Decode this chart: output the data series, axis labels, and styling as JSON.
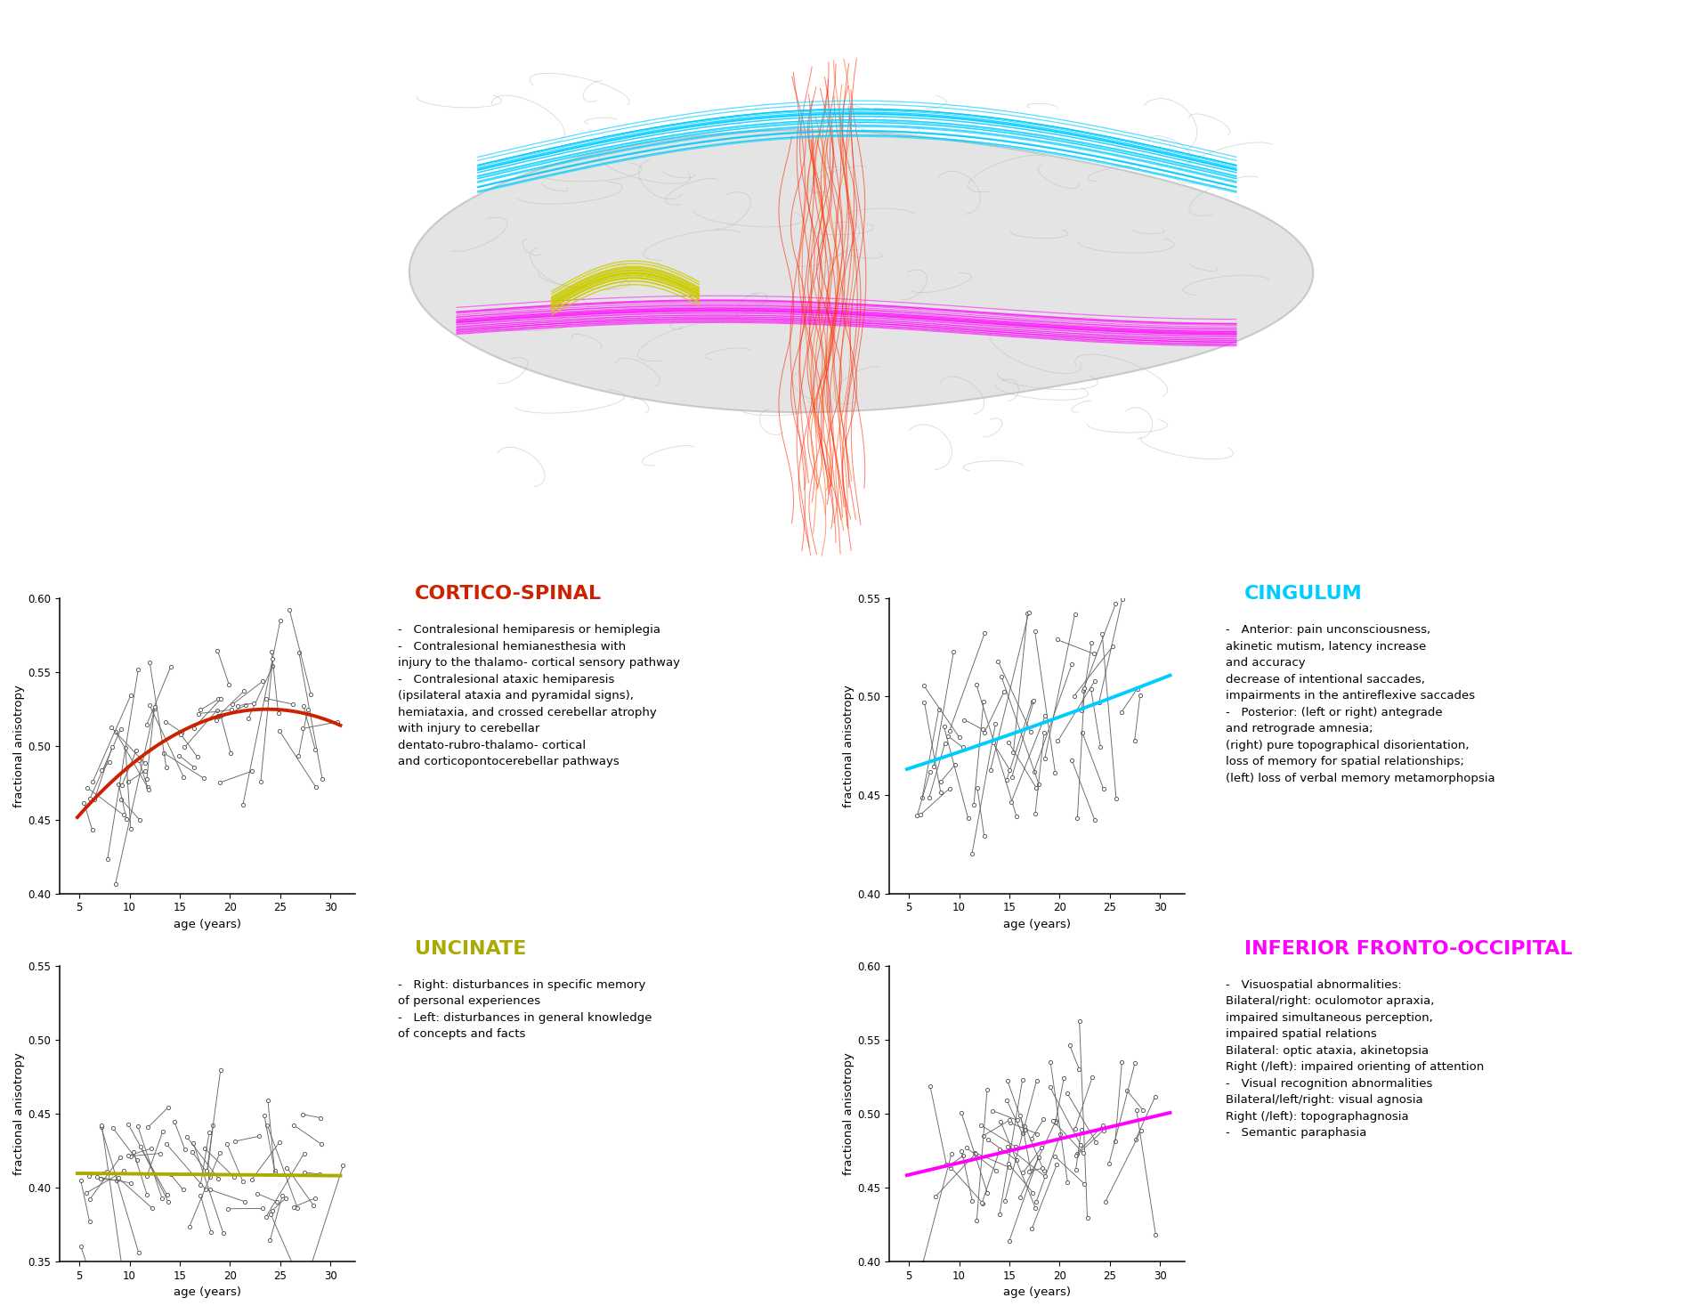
{
  "title_cs": "CORTICO-SPINAL",
  "title_cing": "CINGULUM",
  "title_unc": "UNCINATE",
  "title_ifo": "INFERIOR FRONTO-OCCIPITAL",
  "color_cs": "#CC2200",
  "color_cing": "#00CCFF",
  "color_unc": "#AAAA00",
  "color_ifo": "#FF00FF",
  "ylabel": "fractional anisotropy",
  "xlabel": "age (years)",
  "text_cs": "-   Contralesional hemiparesis or hemiplegia\n-   Contralesional hemianesthesia with\ninjury to the thalamo- cortical sensory pathway\n-   Contralesional ataxic hemiparesis\n(ipsilateral ataxia and pyramidal signs),\nhemiataxia, and crossed cerebellar atrophy\nwith injury to cerebellar\ndentato-rubro-thalamo- cortical\nand corticopontocerebellar pathways",
  "text_cing": "-   Anterior: pain unconsciousness,\nakinetic mutism, latency increase\nand accuracy\ndecrease of intentional saccades,\nimpairments in the antireflexive saccades\n-   Posterior: (left or right) antegrade\nand retrograde amnesia;\n(right) pure topographical disorientation,\nloss of memory for spatial relationships;\n(left) loss of verbal memory metamorphopsia",
  "text_unc": "-   Right: disturbances in specific memory\nof personal experiences\n-   Left: disturbances in general knowledge\nof concepts and facts",
  "text_ifo": "-   Visuospatial abnormalities:\nBilateral/right: oculomotor apraxia,\nimpaired simultaneous perception,\nimpaired spatial relations\nBilateral: optic ataxia, akinetopsia\nRight (/left): impaired orienting of attention\n-   Visual recognition abnormalities\nBilateral/left/right: visual agnosia\nRight (/left): topographagnosia\n-   Semantic paraphasia",
  "bg": "#ffffff",
  "scatter_color": "#666666",
  "dot_color": "#ffffff",
  "dot_edge": "#555555",
  "title_fontsize": 16,
  "text_fontsize": 9.5
}
